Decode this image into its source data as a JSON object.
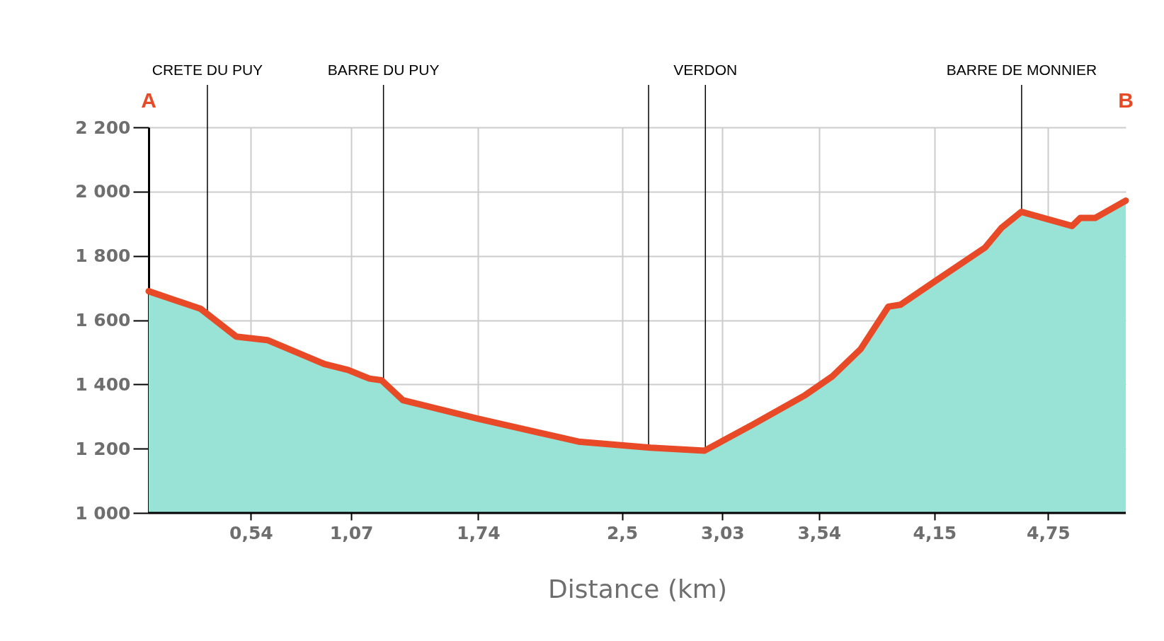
{
  "chart_data": {
    "type": "area",
    "xlabel": "Distance (km)",
    "x": [
      0,
      0.275,
      0.462,
      0.627,
      0.926,
      1.053,
      1.166,
      1.23,
      1.342,
      1.74,
      2.27,
      2.65,
      2.936,
      3.19,
      3.468,
      3.61,
      3.76,
      3.906,
      3.97,
      4.15,
      4.417,
      4.505,
      4.608,
      4.876,
      4.92,
      4.998,
      5.16
    ],
    "series": [
      {
        "color": "#98e2d6",
        "values": [
          1690,
          1635,
          1549,
          1538,
          1464,
          1445,
          1418,
          1413,
          1351,
          1293,
          1222,
          1203,
          1194,
          1275,
          1367,
          1425,
          1510,
          1642,
          1648,
          1720,
          1826,
          1888,
          1937,
          1893,
          1918,
          1918,
          1972
        ]
      },
      {
        "type": "line",
        "color": "#e84a27",
        "values": [
          1690,
          1635,
          1549,
          1538,
          1464,
          1445,
          1418,
          1413,
          1351,
          1293,
          1222,
          1203,
          1194,
          1275,
          1367,
          1425,
          1510,
          1642,
          1648,
          1720,
          1826,
          1888,
          1937,
          1893,
          1918,
          1918,
          1972
        ]
      }
    ],
    "xlim": [
      0,
      5.16
    ],
    "xticks": [
      {
        "value": 0.54,
        "label": "0,54"
      },
      {
        "value": 1.07,
        "label": "1,07"
      },
      {
        "value": 1.74,
        "label": "1,74"
      },
      {
        "value": 2.5,
        "label": "2,5"
      },
      {
        "value": 3.03,
        "label": "3,03"
      },
      {
        "value": 3.54,
        "label": "3,54"
      },
      {
        "value": 4.15,
        "label": "4,15"
      },
      {
        "value": 4.75,
        "label": "4,75"
      }
    ],
    "ylim": [
      1000,
      2200
    ],
    "yticks": [
      {
        "value": 1000,
        "label": "1 000"
      },
      {
        "value": 1200,
        "label": "1 200"
      },
      {
        "value": 1400,
        "label": "1 400"
      },
      {
        "value": 1600,
        "label": "1 600"
      },
      {
        "value": 1800,
        "label": "1 800"
      },
      {
        "value": 2000,
        "label": "2 000"
      },
      {
        "value": 2200,
        "label": "2 200"
      }
    ],
    "grid": true,
    "ref_lines": [
      {
        "axis": "x",
        "value": 0.31,
        "label": "CRETE DU PUY"
      },
      {
        "axis": "x",
        "value": 1.24,
        "label": "BARRE DU PUY"
      },
      {
        "axis": "x",
        "value": 2.64
      },
      {
        "axis": "x",
        "value": 2.94,
        "label": "VERDON"
      },
      {
        "axis": "x",
        "value": 4.61,
        "label": "BARRE DE MONNIER"
      }
    ],
    "annotations": [
      "A",
      "B"
    ]
  }
}
